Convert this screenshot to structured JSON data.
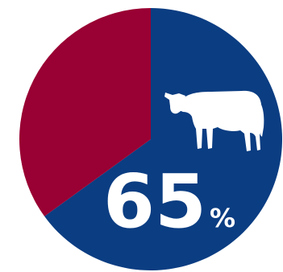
{
  "chart_data": {
    "type": "pie",
    "slices": [
      {
        "value": 65,
        "color": "#0b3d82"
      },
      {
        "value": 35,
        "color": "#990033"
      }
    ],
    "callout": {
      "value": "65",
      "unit": "%",
      "icon": "cow-icon"
    }
  }
}
